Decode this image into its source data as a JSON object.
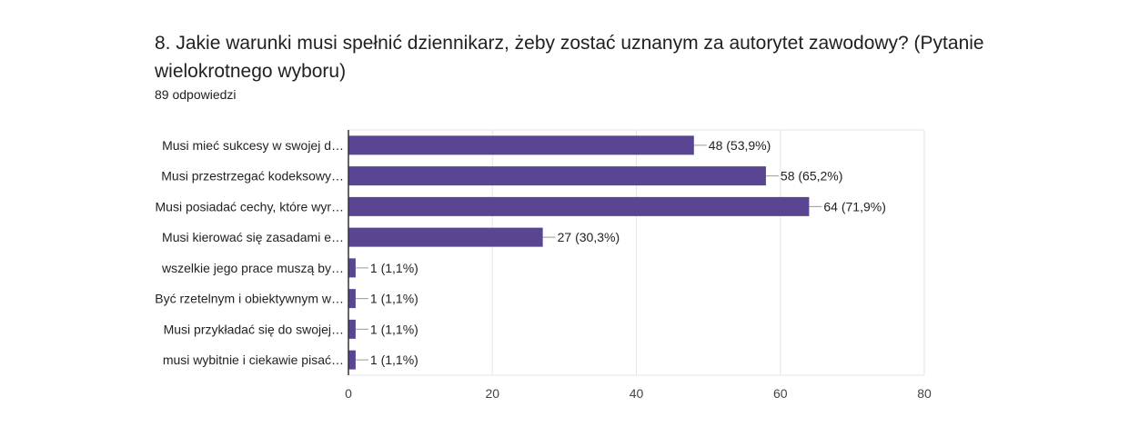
{
  "header": {
    "title": "8. Jakie warunki musi spełnić dziennikarz, żeby zostać uznanym za autorytet zawodowy? (Pytanie wielokrotnego wyboru)",
    "responses": "89 odpowiedzi"
  },
  "colors": {
    "bar": "#5a4593",
    "grid": "#e6e6e6",
    "axis": "#333333",
    "leader": "#999999"
  },
  "chart_data": {
    "type": "bar",
    "orientation": "horizontal",
    "categories": [
      "Musi mieć sukcesy w swojej d…",
      "Musi przestrzegać kodeksowy…",
      "Musi posiadać cechy, które wyr…",
      "Musi kierować się zasadami e…",
      "wszelkie jego prace muszą by…",
      "Być rzetelnym i obiektywnym w…",
      "Musi przykładać się do swojej…",
      "musi wybitnie i ciekawie pisać…"
    ],
    "values": [
      48,
      58,
      64,
      27,
      1,
      1,
      1,
      1
    ],
    "data_labels": [
      "48 (53,9%)",
      "58 (65,2%)",
      "64 (71,9%)",
      "27 (30,3%)",
      "1 (1,1%)",
      "1 (1,1%)",
      "1 (1,1%)",
      "1 (1,1%)"
    ],
    "xlim": [
      0,
      80
    ],
    "xticks": [
      0,
      20,
      40,
      60,
      80
    ],
    "grid": true,
    "legend": "none"
  }
}
